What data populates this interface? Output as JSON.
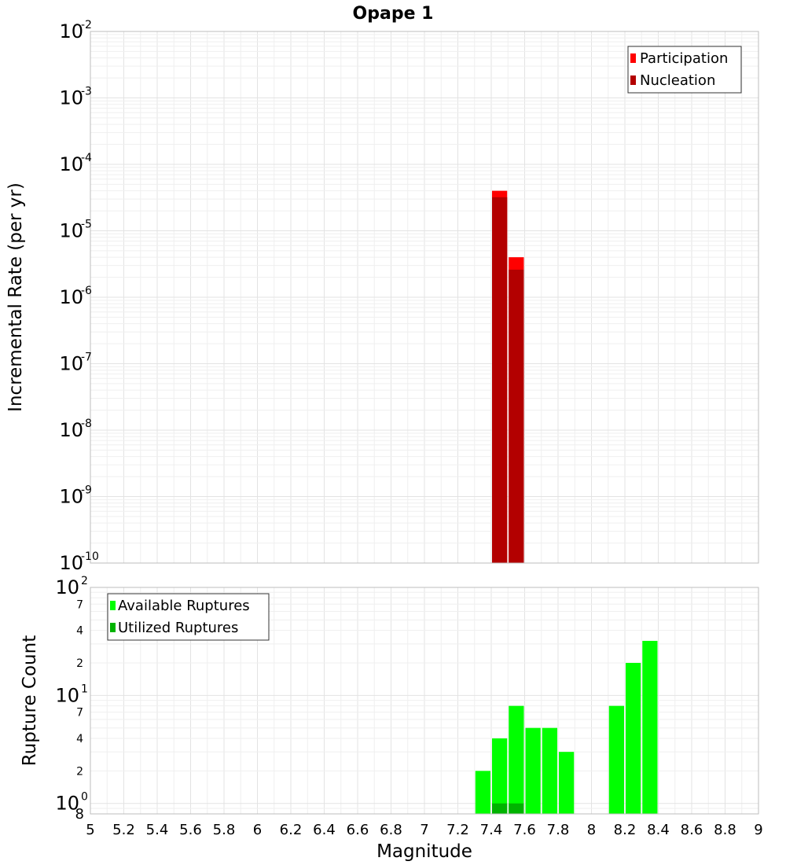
{
  "chart_data": [
    {
      "type": "bar",
      "title": "Opape 1",
      "xlabel": "Magnitude",
      "ylabel": "Incremental Rate (per yr)",
      "yscale": "log",
      "xlim": [
        5,
        9
      ],
      "ylim": [
        1e-10,
        0.01
      ],
      "bar_width": 0.1,
      "grid": true,
      "legend_position": "top-right",
      "series": [
        {
          "name": "Participation",
          "color": "#ff0000",
          "points": [
            {
              "x": 7.45,
              "y": 4e-05
            },
            {
              "x": 7.55,
              "y": 4e-06
            }
          ]
        },
        {
          "name": "Nucleation",
          "color": "#b30000",
          "points": [
            {
              "x": 7.45,
              "y": 3.2e-05
            },
            {
              "x": 7.55,
              "y": 2.6e-06
            }
          ]
        }
      ],
      "y_ticks": [
        {
          "base": "10",
          "exp": "-10"
        },
        {
          "base": "10",
          "exp": "-9"
        },
        {
          "base": "10",
          "exp": "-8"
        },
        {
          "base": "10",
          "exp": "-7"
        },
        {
          "base": "10",
          "exp": "-6"
        },
        {
          "base": "10",
          "exp": "-5"
        },
        {
          "base": "10",
          "exp": "-4"
        },
        {
          "base": "10",
          "exp": "-3"
        },
        {
          "base": "10",
          "exp": "-2"
        }
      ]
    },
    {
      "type": "bar",
      "xlabel": "Magnitude",
      "ylabel": "Rupture Count",
      "yscale": "log",
      "xlim": [
        5,
        9
      ],
      "ylim": [
        0.8,
        100
      ],
      "bar_width": 0.1,
      "grid": true,
      "legend_position": "top-left",
      "series": [
        {
          "name": "Available Ruptures",
          "color": "#00ff00",
          "points": [
            {
              "x": 7.35,
              "y": 2
            },
            {
              "x": 7.45,
              "y": 4
            },
            {
              "x": 7.55,
              "y": 8
            },
            {
              "x": 7.65,
              "y": 5
            },
            {
              "x": 7.75,
              "y": 5
            },
            {
              "x": 7.85,
              "y": 3
            },
            {
              "x": 8.15,
              "y": 8
            },
            {
              "x": 8.25,
              "y": 20
            },
            {
              "x": 8.35,
              "y": 32
            }
          ]
        },
        {
          "name": "Utilized Ruptures",
          "color": "#00b300",
          "points": [
            {
              "x": 7.45,
              "y": 1
            },
            {
              "x": 7.55,
              "y": 1
            }
          ]
        }
      ],
      "y_decades": [
        {
          "value": 1,
          "base": "10",
          "exp": "0"
        },
        {
          "value": 10,
          "base": "10",
          "exp": "1"
        },
        {
          "value": 100,
          "base": "10",
          "exp": "2"
        }
      ],
      "y_minor_labels": [
        {
          "value": 0.8,
          "label": "8"
        },
        {
          "value": 2,
          "label": "2"
        },
        {
          "value": 4,
          "label": "4"
        },
        {
          "value": 7,
          "label": "7"
        },
        {
          "value": 20,
          "label": "2"
        },
        {
          "value": 40,
          "label": "4"
        },
        {
          "value": 70,
          "label": "7"
        }
      ]
    }
  ],
  "x_ticks": [
    "5",
    "5.2",
    "5.4",
    "5.6",
    "5.8",
    "6",
    "6.2",
    "6.4",
    "6.6",
    "6.8",
    "7",
    "7.2",
    "7.4",
    "7.6",
    "7.8",
    "8",
    "8.2",
    "8.4",
    "8.6",
    "8.8",
    "9"
  ]
}
